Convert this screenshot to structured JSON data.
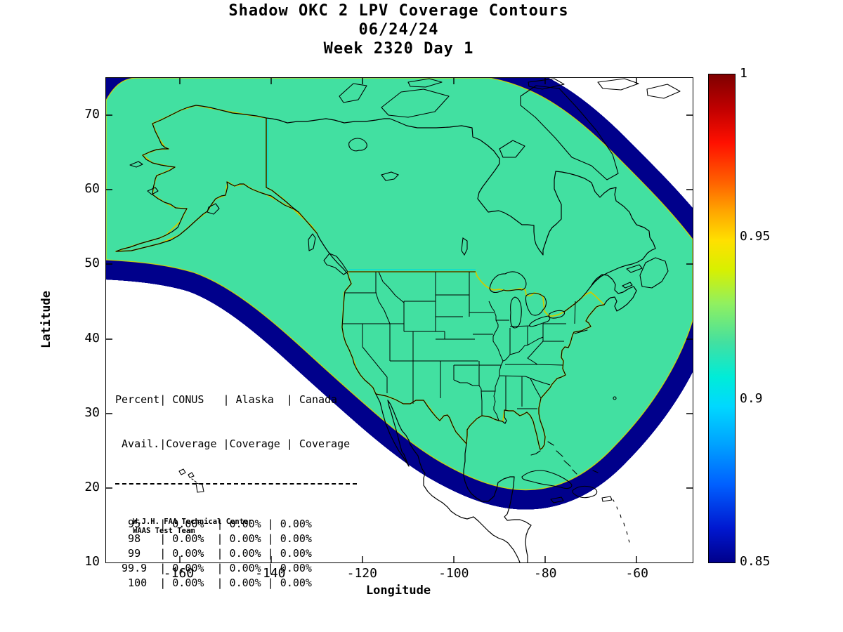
{
  "title": {
    "line1": "Shadow OKC 2 LPV Coverage Contours",
    "line2": "06/24/24",
    "line3": "Week 2320 Day 1"
  },
  "axes": {
    "xlabel": "Longitude",
    "ylabel": "Latitude",
    "x_ticks": [
      -160,
      -140,
      -120,
      -100,
      -80,
      -60
    ],
    "y_ticks": [
      70,
      60,
      50,
      40,
      30,
      20,
      10
    ],
    "xlim": [
      -176,
      -48
    ],
    "ylim": [
      10,
      75
    ]
  },
  "colorbar": {
    "min": 0.85,
    "max": 1,
    "tick_values": [
      1,
      0.95,
      0.9,
      0.85
    ],
    "tick_labels": [
      "1",
      "0.95",
      "0.9",
      "0.85"
    ]
  },
  "coverage_table": {
    "header1": "Percent| CONUS   | Alaska  | Canada",
    "header2": " Avail.|Coverage |Coverage | Coverage",
    "rows": [
      {
        "avail": "95",
        "conus": "0.00%",
        "alaska": "0.00%",
        "canada": "0.00%"
      },
      {
        "avail": "98",
        "conus": "0.00%",
        "alaska": "0.00%",
        "canada": "0.00%"
      },
      {
        "avail": "99",
        "conus": "0.00%",
        "alaska": "0.00%",
        "canada": "0.00%"
      },
      {
        "avail": "99.9",
        "conus": "0.00%",
        "alaska": "0.00%",
        "canada": "0.00%"
      },
      {
        "avail": "100",
        "conus": "0.00%",
        "alaska": "0.00%",
        "canada": "0.00%"
      }
    ]
  },
  "credit": {
    "line1": "W.J.H. FAA Technical Center",
    "line2": "WAAS Test Team"
  },
  "colors": {
    "coverage_fill": "#42e0a1",
    "band_outer": "#00008b",
    "conus_outline": "#cccc00",
    "canada_outline": "#00dddd",
    "coastline": "#000000"
  },
  "chart_data": {
    "type": "heatmap",
    "subtype": "geographic_coverage_contour_map",
    "title": "Shadow OKC 2 LPV Coverage Contours",
    "date": "06/24/24",
    "gps_week_day": "Week 2320 Day 1",
    "xlabel": "Longitude",
    "ylabel": "Latitude",
    "xlim": [
      -176,
      -48
    ],
    "ylim": [
      10,
      75
    ],
    "x_ticks": [
      -160,
      -140,
      -120,
      -100,
      -80,
      -60
    ],
    "y_ticks": [
      10,
      20,
      30,
      40,
      50,
      60,
      70
    ],
    "colorbar": {
      "range": [
        0.85,
        1
      ],
      "ticks": [
        0.85,
        0.9,
        0.95,
        1
      ],
      "colormap": "jet",
      "position": "right"
    },
    "coverage_level_interior": 0.92,
    "description": "Uniform LPV availability contour (~0.92, green) covering Alaska, Canada, CONUS and Mexico, with jet-colormap contour bands falling from 0.92 through cyan to 0.85 (dark blue) at the coverage region edges; no-coverage (white) outside.",
    "region_outlines": [
      "CONUS (yellow)",
      "Alaska (yellow)",
      "Canada (cyan)"
    ],
    "table": {
      "columns": [
        "Percent Avail.",
        "CONUS Coverage",
        "Alaska Coverage",
        "Canada Coverage"
      ],
      "rows": [
        [
          95,
          "0.00%",
          "0.00%",
          "0.00%"
        ],
        [
          98,
          "0.00%",
          "0.00%",
          "0.00%"
        ],
        [
          99,
          "0.00%",
          "0.00%",
          "0.00%"
        ],
        [
          99.9,
          "0.00%",
          "0.00%",
          "0.00%"
        ],
        [
          100,
          "0.00%",
          "0.00%",
          "0.00%"
        ]
      ]
    },
    "annotations": [
      "W.J.H. FAA Technical Center",
      "WAAS Test Team"
    ]
  }
}
